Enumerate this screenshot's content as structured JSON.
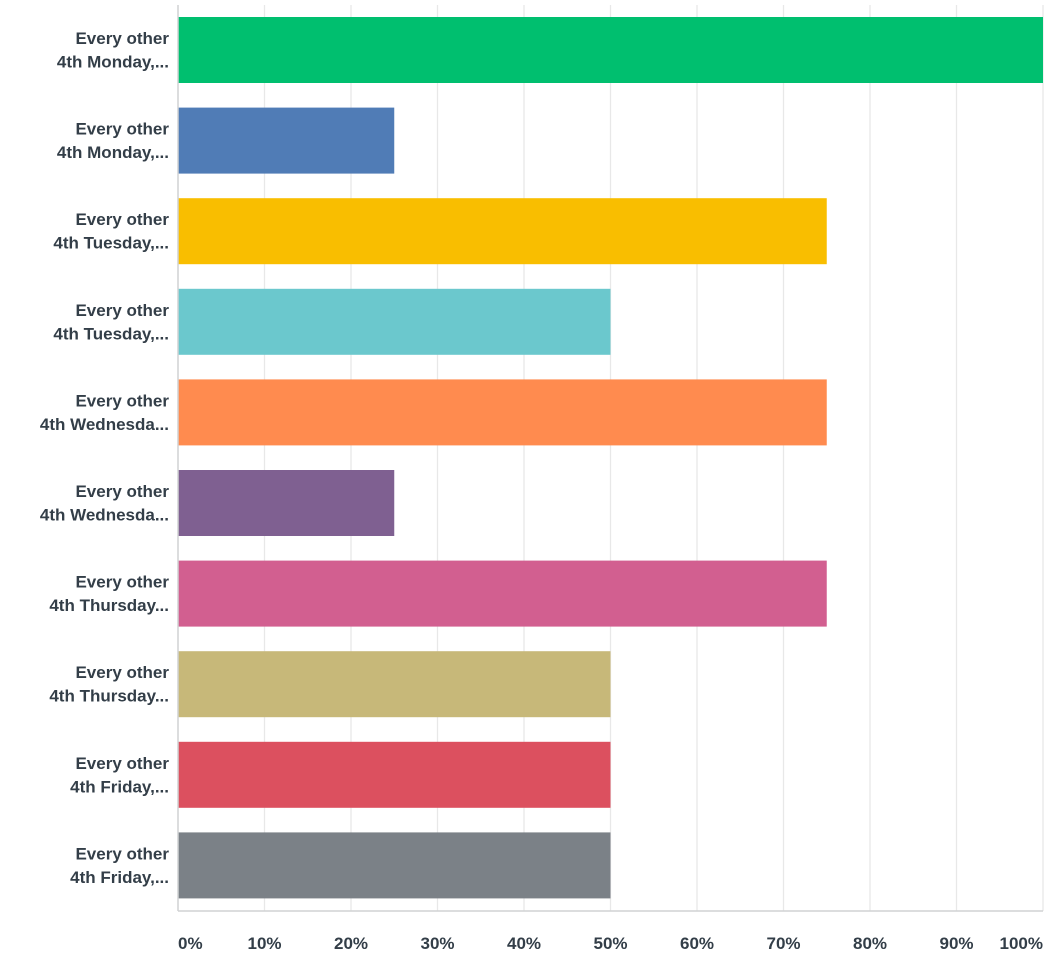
{
  "chart_data": {
    "type": "bar",
    "orientation": "horizontal",
    "categories": [
      [
        "Every other",
        "4th Monday,..."
      ],
      [
        "Every other",
        "4th Monday,..."
      ],
      [
        "Every other",
        "4th Tuesday,..."
      ],
      [
        "Every other",
        "4th Tuesday,..."
      ],
      [
        "Every other",
        "4th Wednesda..."
      ],
      [
        "Every other",
        "4th Wednesda..."
      ],
      [
        "Every other",
        "4th Thursday..."
      ],
      [
        "Every other",
        "4th Thursday..."
      ],
      [
        "Every other",
        "4th Friday,..."
      ],
      [
        "Every other",
        "4th Friday,..."
      ]
    ],
    "values": [
      100,
      25,
      75,
      50,
      75,
      25,
      75,
      50,
      50,
      50
    ],
    "colors": [
      "#00bf6f",
      "#507cb6",
      "#f9be00",
      "#6bc8cd",
      "#ff8b4f",
      "#7f6091",
      "#d25f90",
      "#c7b879",
      "#dc505f",
      "#7b8187"
    ],
    "xlim": [
      0,
      100
    ],
    "xticks": [
      0,
      10,
      20,
      30,
      40,
      50,
      60,
      70,
      80,
      90,
      100
    ],
    "xtick_labels": [
      "0%",
      "10%",
      "20%",
      "30%",
      "40%",
      "50%",
      "60%",
      "70%",
      "80%",
      "90%",
      "100%"
    ],
    "grid": true,
    "legend": "none",
    "title": "",
    "xlabel": "",
    "ylabel": ""
  }
}
